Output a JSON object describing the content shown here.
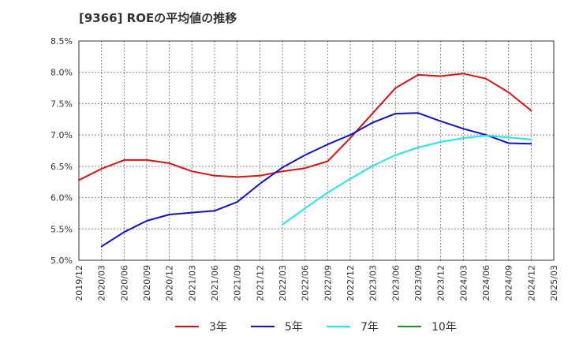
{
  "chart_data": {
    "type": "line",
    "title": "[9366]  ROEの平均値の推移",
    "xlabel": "",
    "ylabel": "",
    "ylim": [
      5.0,
      8.5
    ],
    "y_ticks": [
      "5.0%",
      "5.5%",
      "6.0%",
      "6.5%",
      "7.0%",
      "7.5%",
      "8.0%",
      "8.5%"
    ],
    "y_tick_values": [
      5.0,
      5.5,
      6.0,
      6.5,
      7.0,
      7.5,
      8.0,
      8.5
    ],
    "x_ticks": [
      "2019/12",
      "2020/03",
      "2020/06",
      "2020/09",
      "2020/12",
      "2021/03",
      "2021/06",
      "2021/09",
      "2021/12",
      "2022/03",
      "2022/06",
      "2022/09",
      "2022/12",
      "2023/03",
      "2023/06",
      "2023/09",
      "2023/12",
      "2024/03",
      "2024/06",
      "2024/09",
      "2024/12",
      "2025/03"
    ],
    "grid": true,
    "legend_position": "bottom",
    "series": [
      {
        "name": "3年",
        "color": "#dd1111",
        "x": [
          0,
          1,
          2,
          3,
          4,
          5,
          6,
          7,
          8,
          9,
          10,
          11,
          12,
          13,
          14,
          15,
          16,
          17,
          18,
          19,
          20
        ],
        "values": [
          6.28,
          6.46,
          6.6,
          6.6,
          6.55,
          6.42,
          6.35,
          6.33,
          6.35,
          6.42,
          6.47,
          6.58,
          6.95,
          7.35,
          7.75,
          7.96,
          7.94,
          7.98,
          7.9,
          7.68,
          7.39
        ]
      },
      {
        "name": "5年",
        "color": "#1111cc",
        "x": [
          1,
          2,
          3,
          4,
          5,
          6,
          7,
          8,
          9,
          10,
          11,
          12,
          13,
          14,
          15,
          16,
          17,
          18,
          19,
          20
        ],
        "values": [
          5.22,
          5.45,
          5.63,
          5.73,
          5.76,
          5.79,
          5.93,
          6.22,
          6.48,
          6.68,
          6.85,
          7.0,
          7.2,
          7.34,
          7.35,
          7.22,
          7.1,
          7.0,
          6.87,
          6.86
        ]
      },
      {
        "name": "7年",
        "color": "#22e5f0",
        "x": [
          9,
          10,
          11,
          12,
          13,
          14,
          15,
          16,
          17,
          18,
          19,
          20
        ],
        "values": [
          5.57,
          5.83,
          6.08,
          6.3,
          6.51,
          6.68,
          6.8,
          6.89,
          6.95,
          6.99,
          6.96,
          6.93
        ]
      },
      {
        "name": "10年",
        "color": "#229922",
        "x": [],
        "values": []
      }
    ]
  }
}
